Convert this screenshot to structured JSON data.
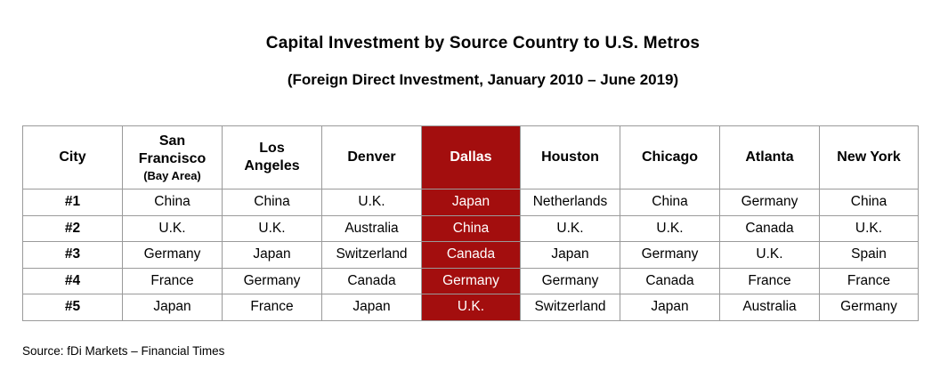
{
  "title": "Capital Investment by Source Country to U.S. Metros",
  "subtitle": "(Foreign Direct Investment, January 2010 – June 2019)",
  "table": {
    "city_header": "City",
    "cities": [
      {
        "name": "San Francisco",
        "sub": "(Bay Area)"
      },
      {
        "name": "Los Angeles",
        "sub": ""
      },
      {
        "name": "Denver",
        "sub": ""
      },
      {
        "name": "Dallas",
        "sub": ""
      },
      {
        "name": "Houston",
        "sub": ""
      },
      {
        "name": "Chicago",
        "sub": ""
      },
      {
        "name": "Atlanta",
        "sub": ""
      },
      {
        "name": "New York",
        "sub": ""
      }
    ],
    "highlight_city": "Dallas",
    "highlight_color": "#a30e0e",
    "rows": [
      {
        "rank": "#1",
        "values": [
          "China",
          "China",
          "U.K.",
          "Japan",
          "Netherlands",
          "China",
          "Germany",
          "China"
        ]
      },
      {
        "rank": "#2",
        "values": [
          "U.K.",
          "U.K.",
          "Australia",
          "China",
          "U.K.",
          "U.K.",
          "Canada",
          "U.K."
        ]
      },
      {
        "rank": "#3",
        "values": [
          "Germany",
          "Japan",
          "Switzerland",
          "Canada",
          "Japan",
          "Germany",
          "U.K.",
          "Spain"
        ]
      },
      {
        "rank": "#4",
        "values": [
          "France",
          "Germany",
          "Canada",
          "Germany",
          "Germany",
          "Canada",
          "France",
          "France"
        ]
      },
      {
        "rank": "#5",
        "values": [
          "Japan",
          "France",
          "Japan",
          "U.K.",
          "Switzerland",
          "Japan",
          "Australia",
          "Germany"
        ]
      }
    ]
  },
  "source": "Source: fDi Markets – Financial Times"
}
